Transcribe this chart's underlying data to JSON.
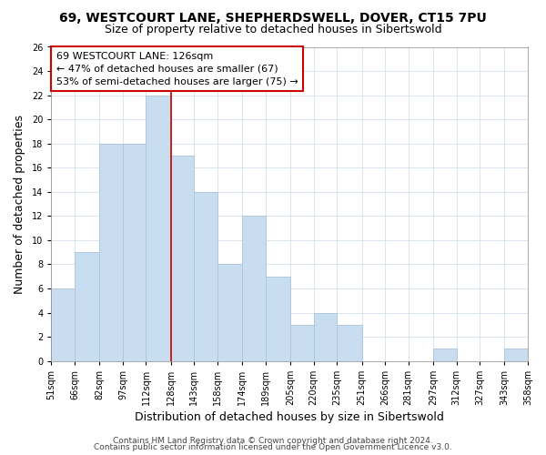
{
  "title1": "69, WESTCOURT LANE, SHEPHERDSWELL, DOVER, CT15 7PU",
  "title2": "Size of property relative to detached houses in Sibertswold",
  "xlabel": "Distribution of detached houses by size in Sibertswold",
  "ylabel": "Number of detached properties",
  "bar_edges": [
    51,
    66,
    82,
    97,
    112,
    128,
    143,
    158,
    174,
    189,
    205,
    220,
    235,
    251,
    266,
    281,
    297,
    312,
    327,
    343,
    358
  ],
  "bar_heights": [
    6,
    9,
    18,
    18,
    22,
    17,
    14,
    8,
    12,
    7,
    3,
    4,
    3,
    0,
    0,
    0,
    1,
    0,
    0,
    1
  ],
  "bar_color": "#c8ddf0",
  "bar_edge_color": "#aec8e0",
  "vline_x": 128,
  "vline_color": "#cc0000",
  "ylim": [
    0,
    26
  ],
  "yticks": [
    0,
    2,
    4,
    6,
    8,
    10,
    12,
    14,
    16,
    18,
    20,
    22,
    24,
    26
  ],
  "tick_labels": [
    "51sqm",
    "66sqm",
    "82sqm",
    "97sqm",
    "112sqm",
    "128sqm",
    "143sqm",
    "158sqm",
    "174sqm",
    "189sqm",
    "205sqm",
    "220sqm",
    "235sqm",
    "251sqm",
    "266sqm",
    "281sqm",
    "297sqm",
    "312sqm",
    "327sqm",
    "343sqm",
    "358sqm"
  ],
  "annotation_line1": "69 WESTCOURT LANE: 126sqm",
  "annotation_line2": "← 47% of detached houses are smaller (67)",
  "annotation_line3": "53% of semi-detached houses are larger (75) →",
  "footer1": "Contains HM Land Registry data © Crown copyright and database right 2024.",
  "footer2": "Contains public sector information licensed under the Open Government Licence v3.0.",
  "background_color": "#ffffff",
  "grid_color": "#d4e0ec",
  "title_fontsize": 10,
  "subtitle_fontsize": 9,
  "label_fontsize": 9,
  "tick_fontsize": 7,
  "annotation_fontsize": 8,
  "footer_fontsize": 6.5
}
